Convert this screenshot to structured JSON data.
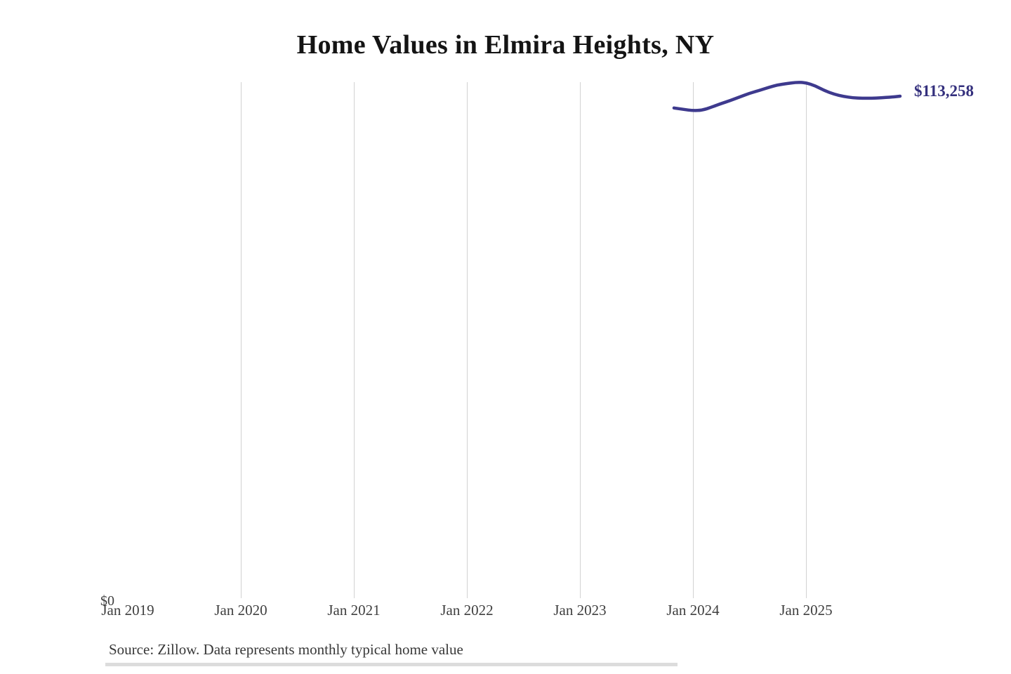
{
  "title": "Home Values in Elmira Heights, NY",
  "source_note": "Source: Zillow. Data represents monthly typical home value",
  "colors": {
    "line": "#3e3a8e",
    "end_label": "#34307d",
    "gridline": "#d2d2d2",
    "axis_text": "#3f3f3f",
    "title_text": "#141414",
    "source_text": "#383838"
  },
  "chart_data": {
    "type": "line",
    "title": "Home Values in Elmira Heights, NY",
    "xlabel": "",
    "ylabel": "",
    "ylim": [
      0,
      116500
    ],
    "grid": "vertical-only",
    "legend_position": "none",
    "y_zero_label": "$0",
    "end_label": "$113,258",
    "x_axis": {
      "tick_labels": [
        "Jan 2019",
        "Jan 2020",
        "Jan 2021",
        "Jan 2022",
        "Jan 2023",
        "Jan 2024",
        "Jan 2025"
      ],
      "gridline_ticks": [
        "Jan 2020",
        "Jan 2021",
        "Jan 2022",
        "Jan 2023",
        "Jan 2024",
        "Jan 2025"
      ]
    },
    "series": [
      {
        "name": "Typical home value",
        "x": [
          "Nov 2023",
          "Dec 2023",
          "Jan 2024",
          "Feb 2024",
          "Mar 2024",
          "Apr 2024",
          "May 2024",
          "Jun 2024",
          "Jul 2024",
          "Aug 2024",
          "Sep 2024",
          "Oct 2024",
          "Nov 2024",
          "Dec 2024",
          "Jan 2025",
          "Feb 2025",
          "Mar 2025",
          "Apr 2025",
          "May 2025",
          "Jun 2025",
          "Jul 2025",
          "Aug 2025",
          "Sep 2025",
          "Oct 2025",
          "Nov 2025"
        ],
        "values": [
          110600,
          110300,
          110000,
          110100,
          110800,
          111600,
          112300,
          113100,
          113900,
          114500,
          115200,
          115800,
          116100,
          116400,
          116300,
          115600,
          114500,
          113700,
          113200,
          112900,
          112800,
          112800,
          112900,
          113050,
          113258
        ]
      }
    ]
  }
}
